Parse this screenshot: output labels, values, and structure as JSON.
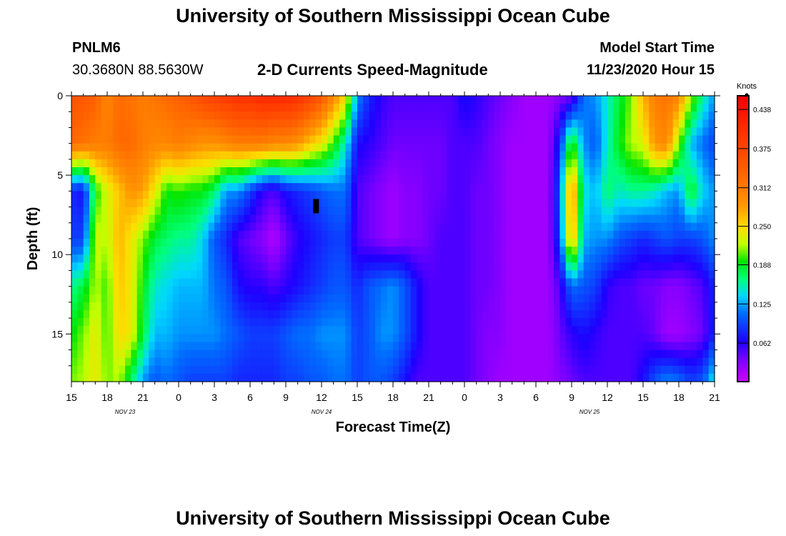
{
  "page_title": "University of Southern Mississippi Ocean Cube",
  "footer_title": "University of Southern Mississippi Ocean Cube",
  "header": {
    "station_id": "PNLM6",
    "location": "30.3680N 88.5630W",
    "plot_title": "2-D Currents Speed-Magnitude",
    "model_label": "Model Start Time",
    "model_time": "11/23/2020 Hour 15"
  },
  "chart_data": {
    "type": "heatmap",
    "title": "2-D Currents Speed-Magnitude",
    "xlabel": "Forecast Time(Z)",
    "ylabel": "Depth (ft)",
    "x_tick_labels": [
      "15",
      "18",
      "21",
      "0",
      "3",
      "6",
      "9",
      "12",
      "15",
      "18",
      "21",
      "0",
      "3",
      "6",
      "9",
      "12",
      "15",
      "18",
      "21"
    ],
    "x_ticks_hours": [
      0,
      3,
      6,
      9,
      12,
      15,
      18,
      21,
      24,
      27,
      30,
      33,
      36,
      39,
      42,
      45,
      48,
      51,
      54
    ],
    "date_labels": [
      {
        "text": "NOV  23",
        "hour": 4.5
      },
      {
        "text": "NOV  24",
        "hour": 21
      },
      {
        "text": "NOV  25",
        "hour": 43.5
      }
    ],
    "y_ticks": [
      0,
      5,
      10,
      15
    ],
    "y_range": [
      0,
      18
    ],
    "x_range_hours": [
      0,
      54
    ],
    "colorbar": {
      "title": "Knots",
      "tick_labels": [
        "0.438",
        "0.375",
        "0.312",
        "0.250",
        "0.188",
        "0.125",
        "0.062"
      ],
      "tick_values": [
        0.438,
        0.375,
        0.312,
        0.25,
        0.188,
        0.125,
        0.062
      ],
      "range": [
        0,
        0.46
      ]
    },
    "time_hours": [
      0,
      1,
      2,
      3,
      4,
      5,
      6,
      7,
      8,
      9,
      10,
      11,
      12,
      13,
      14,
      15,
      16,
      17,
      18,
      19,
      20,
      21,
      22,
      23,
      24,
      25,
      26,
      27,
      28,
      29,
      30,
      31,
      32,
      33,
      34,
      35,
      36,
      37,
      38,
      39,
      40,
      41,
      42,
      43,
      44,
      45,
      46,
      47,
      48,
      49,
      50,
      51,
      52,
      53,
      54
    ],
    "depth_ft": [
      0,
      3,
      6,
      9,
      12,
      15,
      18
    ],
    "speed_knots": [
      [
        0.36,
        0.35,
        0.34,
        0.3,
        0.33,
        0.32,
        0.31,
        0.32,
        0.33,
        0.34,
        0.35,
        0.37,
        0.38,
        0.39,
        0.4,
        0.4,
        0.41,
        0.41,
        0.41,
        0.4,
        0.38,
        0.35,
        0.3,
        0.25,
        0.12,
        0.08,
        0.06,
        0.05,
        0.05,
        0.05,
        0.05,
        0.05,
        0.05,
        0.07,
        0.06,
        0.05,
        0.04,
        0.03,
        0.02,
        0.02,
        0.02,
        0.03,
        0.04,
        0.11,
        0.12,
        0.15,
        0.18,
        0.21,
        0.27,
        0.31,
        0.32,
        0.3,
        0.22,
        0.16,
        0.12
      ],
      [
        0.33,
        0.32,
        0.31,
        0.31,
        0.33,
        0.33,
        0.31,
        0.3,
        0.3,
        0.31,
        0.3,
        0.29,
        0.29,
        0.3,
        0.31,
        0.31,
        0.31,
        0.3,
        0.3,
        0.29,
        0.26,
        0.24,
        0.2,
        0.15,
        0.07,
        0.06,
        0.05,
        0.04,
        0.04,
        0.04,
        0.04,
        0.04,
        0.05,
        0.05,
        0.05,
        0.04,
        0.03,
        0.02,
        0.02,
        0.02,
        0.02,
        0.08,
        0.2,
        0.12,
        0.1,
        0.15,
        0.19,
        0.22,
        0.23,
        0.29,
        0.3,
        0.21,
        0.13,
        0.11,
        0.09
      ],
      [
        0.08,
        0.07,
        0.19,
        0.23,
        0.26,
        0.29,
        0.28,
        0.24,
        0.19,
        0.2,
        0.19,
        0.19,
        0.17,
        0.12,
        0.12,
        0.09,
        0.06,
        0.05,
        0.07,
        0.08,
        0.09,
        0.1,
        0.11,
        0.11,
        0.05,
        0.04,
        0.03,
        0.02,
        0.03,
        0.03,
        0.04,
        0.04,
        0.05,
        0.05,
        0.04,
        0.04,
        0.03,
        0.02,
        0.02,
        0.02,
        0.02,
        0.1,
        0.3,
        0.15,
        0.13,
        0.17,
        0.15,
        0.16,
        0.16,
        0.15,
        0.13,
        0.12,
        0.19,
        0.14,
        0.12
      ],
      [
        0.09,
        0.09,
        0.23,
        0.22,
        0.27,
        0.24,
        0.21,
        0.18,
        0.17,
        0.16,
        0.16,
        0.14,
        0.1,
        0.08,
        0.05,
        0.04,
        0.03,
        0.01,
        0.04,
        0.06,
        0.07,
        0.08,
        0.09,
        0.09,
        0.05,
        0.04,
        0.03,
        0.02,
        0.03,
        0.03,
        0.04,
        0.05,
        0.05,
        0.05,
        0.04,
        0.04,
        0.03,
        0.02,
        0.02,
        0.02,
        0.02,
        0.09,
        0.28,
        0.13,
        0.12,
        0.12,
        0.1,
        0.09,
        0.08,
        0.09,
        0.1,
        0.09,
        0.09,
        0.1,
        0.12
      ],
      [
        0.16,
        0.18,
        0.22,
        0.2,
        0.26,
        0.24,
        0.19,
        0.15,
        0.14,
        0.13,
        0.13,
        0.13,
        0.11,
        0.1,
        0.07,
        0.06,
        0.06,
        0.05,
        0.06,
        0.07,
        0.08,
        0.09,
        0.1,
        0.1,
        0.08,
        0.1,
        0.11,
        0.12,
        0.1,
        0.07,
        0.05,
        0.05,
        0.05,
        0.05,
        0.04,
        0.04,
        0.03,
        0.02,
        0.02,
        0.02,
        0.02,
        0.05,
        0.11,
        0.1,
        0.09,
        0.06,
        0.05,
        0.05,
        0.04,
        0.04,
        0.03,
        0.03,
        0.04,
        0.05,
        0.08
      ],
      [
        0.19,
        0.21,
        0.24,
        0.2,
        0.25,
        0.24,
        0.18,
        0.13,
        0.13,
        0.12,
        0.12,
        0.12,
        0.12,
        0.11,
        0.1,
        0.09,
        0.09,
        0.09,
        0.1,
        0.11,
        0.11,
        0.12,
        0.12,
        0.12,
        0.09,
        0.1,
        0.12,
        0.12,
        0.1,
        0.07,
        0.05,
        0.05,
        0.05,
        0.05,
        0.04,
        0.03,
        0.03,
        0.02,
        0.02,
        0.02,
        0.02,
        0.04,
        0.06,
        0.07,
        0.06,
        0.05,
        0.05,
        0.05,
        0.05,
        0.04,
        0.02,
        0.02,
        0.03,
        0.04,
        0.08
      ],
      [
        0.21,
        0.22,
        0.24,
        0.21,
        0.22,
        0.17,
        0.12,
        0.1,
        0.11,
        0.1,
        0.09,
        0.09,
        0.09,
        0.09,
        0.08,
        0.08,
        0.08,
        0.08,
        0.09,
        0.09,
        0.1,
        0.1,
        0.11,
        0.11,
        0.09,
        0.1,
        0.1,
        0.09,
        0.07,
        0.05,
        0.05,
        0.05,
        0.05,
        0.05,
        0.04,
        0.03,
        0.02,
        0.02,
        0.02,
        0.02,
        0.02,
        0.03,
        0.04,
        0.05,
        0.05,
        0.05,
        0.05,
        0.05,
        0.07,
        0.1,
        0.12,
        0.11,
        0.09,
        0.1,
        0.15
      ]
    ]
  }
}
